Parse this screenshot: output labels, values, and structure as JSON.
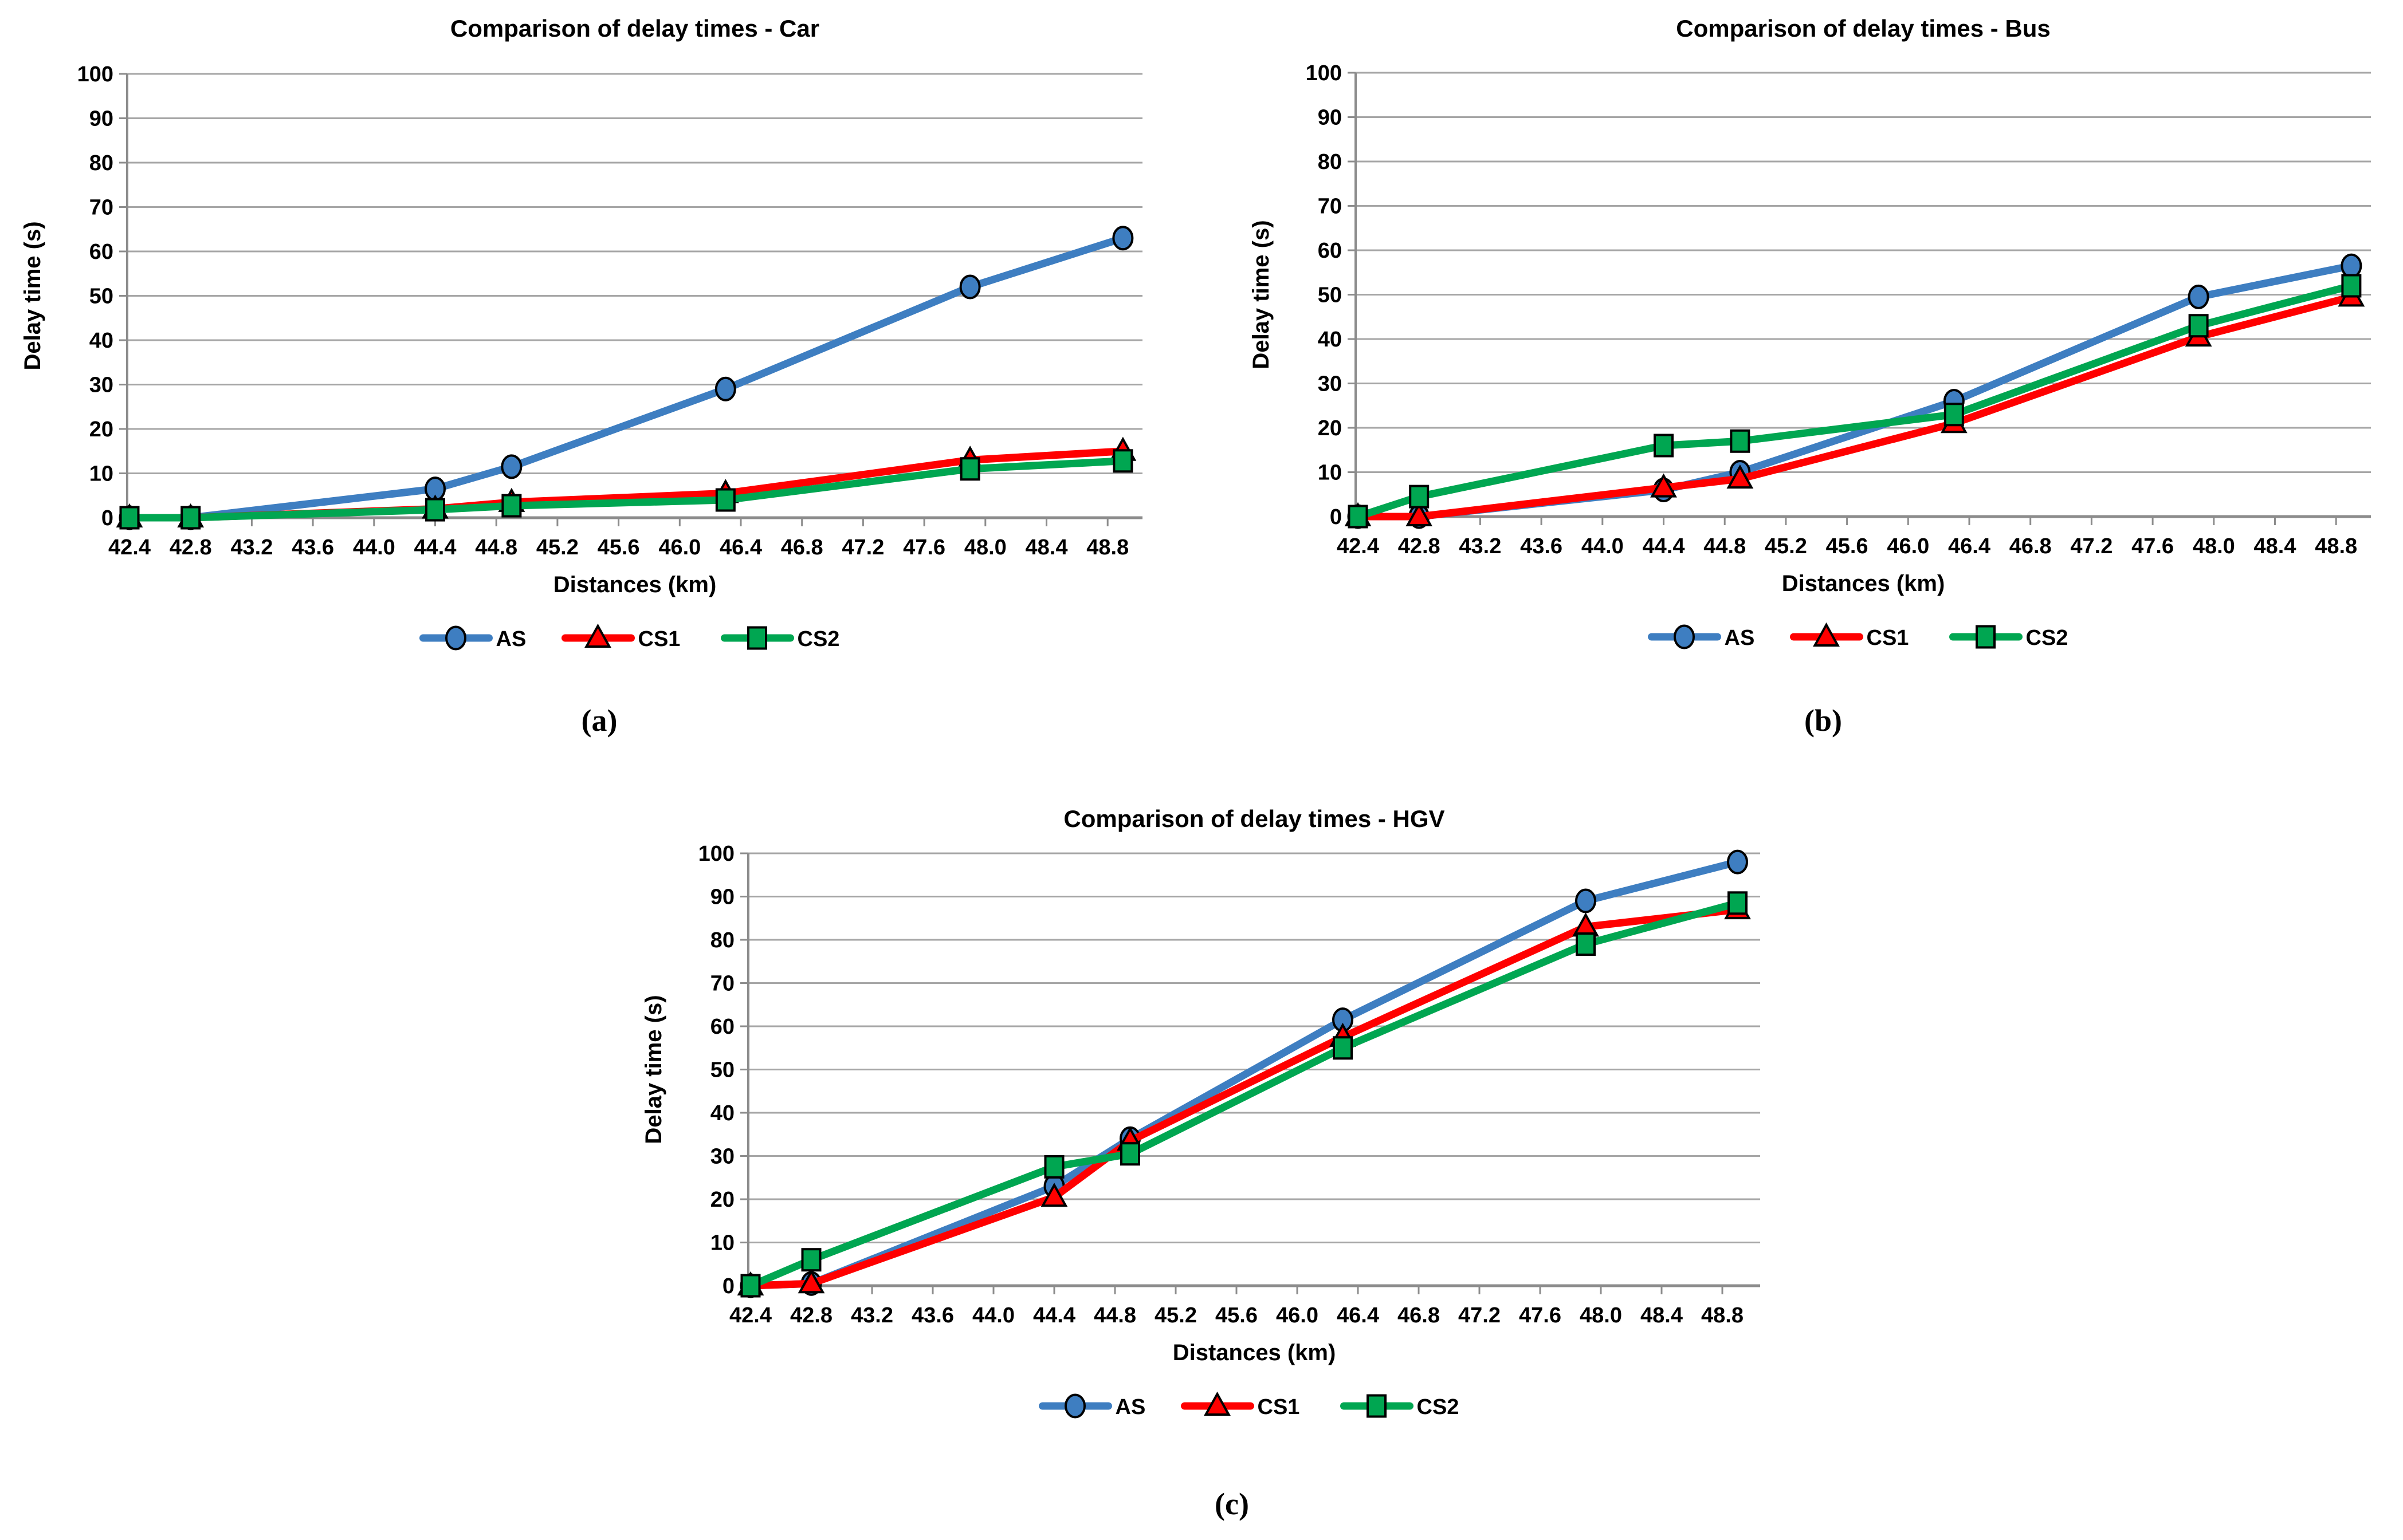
{
  "page": {
    "background": "#FFFFFF"
  },
  "ui": {
    "captions": [
      "(a)",
      "(b)",
      "(c)"
    ]
  },
  "style_colors": {
    "grid": "#A6A6A6",
    "axis": "#8C8C8C",
    "text": "#000000",
    "series_blue": "#3E7EC1",
    "series_red": "#FF0000",
    "series_green": "#00A651"
  },
  "chart_data": [
    {
      "id": "car",
      "type": "line",
      "title": "Comparison of delay times - Car",
      "xlabel": "Distances (km)",
      "ylabel": "Delay time (s)",
      "x": [
        42.4,
        42.8,
        44.4,
        44.9,
        46.3,
        47.9,
        48.9
      ],
      "x_tick_start": 42.4,
      "x_tick_end": 48.8,
      "x_tick_step": 0.4,
      "ylim": [
        0,
        100
      ],
      "y_tick_step": 10,
      "grid": true,
      "legend_position": "bottom",
      "series": [
        {
          "name": "AS",
          "marker": "circle",
          "color": "#3E7EC1",
          "values": [
            0,
            0,
            6.5,
            11.5,
            29,
            52,
            63
          ]
        },
        {
          "name": "CS1",
          "marker": "triangle",
          "color": "#FF0000",
          "values": [
            0,
            0,
            2,
            3.5,
            5.5,
            13,
            15
          ]
        },
        {
          "name": "CS2",
          "marker": "square",
          "color": "#00A651",
          "values": [
            0,
            0,
            1.8,
            2.7,
            4,
            11,
            12.8
          ]
        }
      ]
    },
    {
      "id": "bus",
      "type": "line",
      "title": "Comparison of delay times - Bus",
      "xlabel": "Distances (km)",
      "ylabel": "Delay time (s)",
      "x": [
        42.4,
        42.8,
        44.4,
        44.9,
        46.3,
        47.9,
        48.9
      ],
      "x_tick_start": 42.4,
      "x_tick_end": 48.8,
      "x_tick_step": 0.4,
      "ylim": [
        0,
        100
      ],
      "y_tick_step": 10,
      "grid": true,
      "legend_position": "bottom",
      "series": [
        {
          "name": "AS",
          "marker": "circle",
          "color": "#3E7EC1",
          "values": [
            0,
            0,
            6,
            10,
            26,
            49.5,
            56.5
          ]
        },
        {
          "name": "CS1",
          "marker": "triangle",
          "color": "#FF0000",
          "values": [
            0,
            0,
            6.5,
            8.5,
            21,
            40.5,
            49.5
          ]
        },
        {
          "name": "CS2",
          "marker": "square",
          "color": "#00A651",
          "values": [
            0,
            4.5,
            16,
            17,
            23,
            43,
            52
          ]
        }
      ]
    },
    {
      "id": "hgv",
      "type": "line",
      "title": "Comparison of delay times - HGV",
      "xlabel": "Distances (km)",
      "ylabel": "Delay time (s)",
      "x": [
        42.4,
        42.8,
        44.4,
        44.9,
        46.3,
        47.9,
        48.9
      ],
      "x_tick_start": 42.4,
      "x_tick_end": 48.8,
      "x_tick_step": 0.4,
      "ylim": [
        0,
        100
      ],
      "y_tick_step": 10,
      "grid": true,
      "legend_position": "bottom",
      "series": [
        {
          "name": "AS",
          "marker": "circle",
          "color": "#3E7EC1",
          "values": [
            0,
            0.5,
            23,
            34,
            61.5,
            89,
            98
          ]
        },
        {
          "name": "CS1",
          "marker": "triangle",
          "color": "#FF0000",
          "values": [
            0,
            0.5,
            20.5,
            33.5,
            57.5,
            83,
            87
          ]
        },
        {
          "name": "CS2",
          "marker": "square",
          "color": "#00A651",
          "values": [
            0,
            6,
            27.5,
            30.5,
            55,
            79,
            88.5
          ]
        }
      ]
    }
  ]
}
